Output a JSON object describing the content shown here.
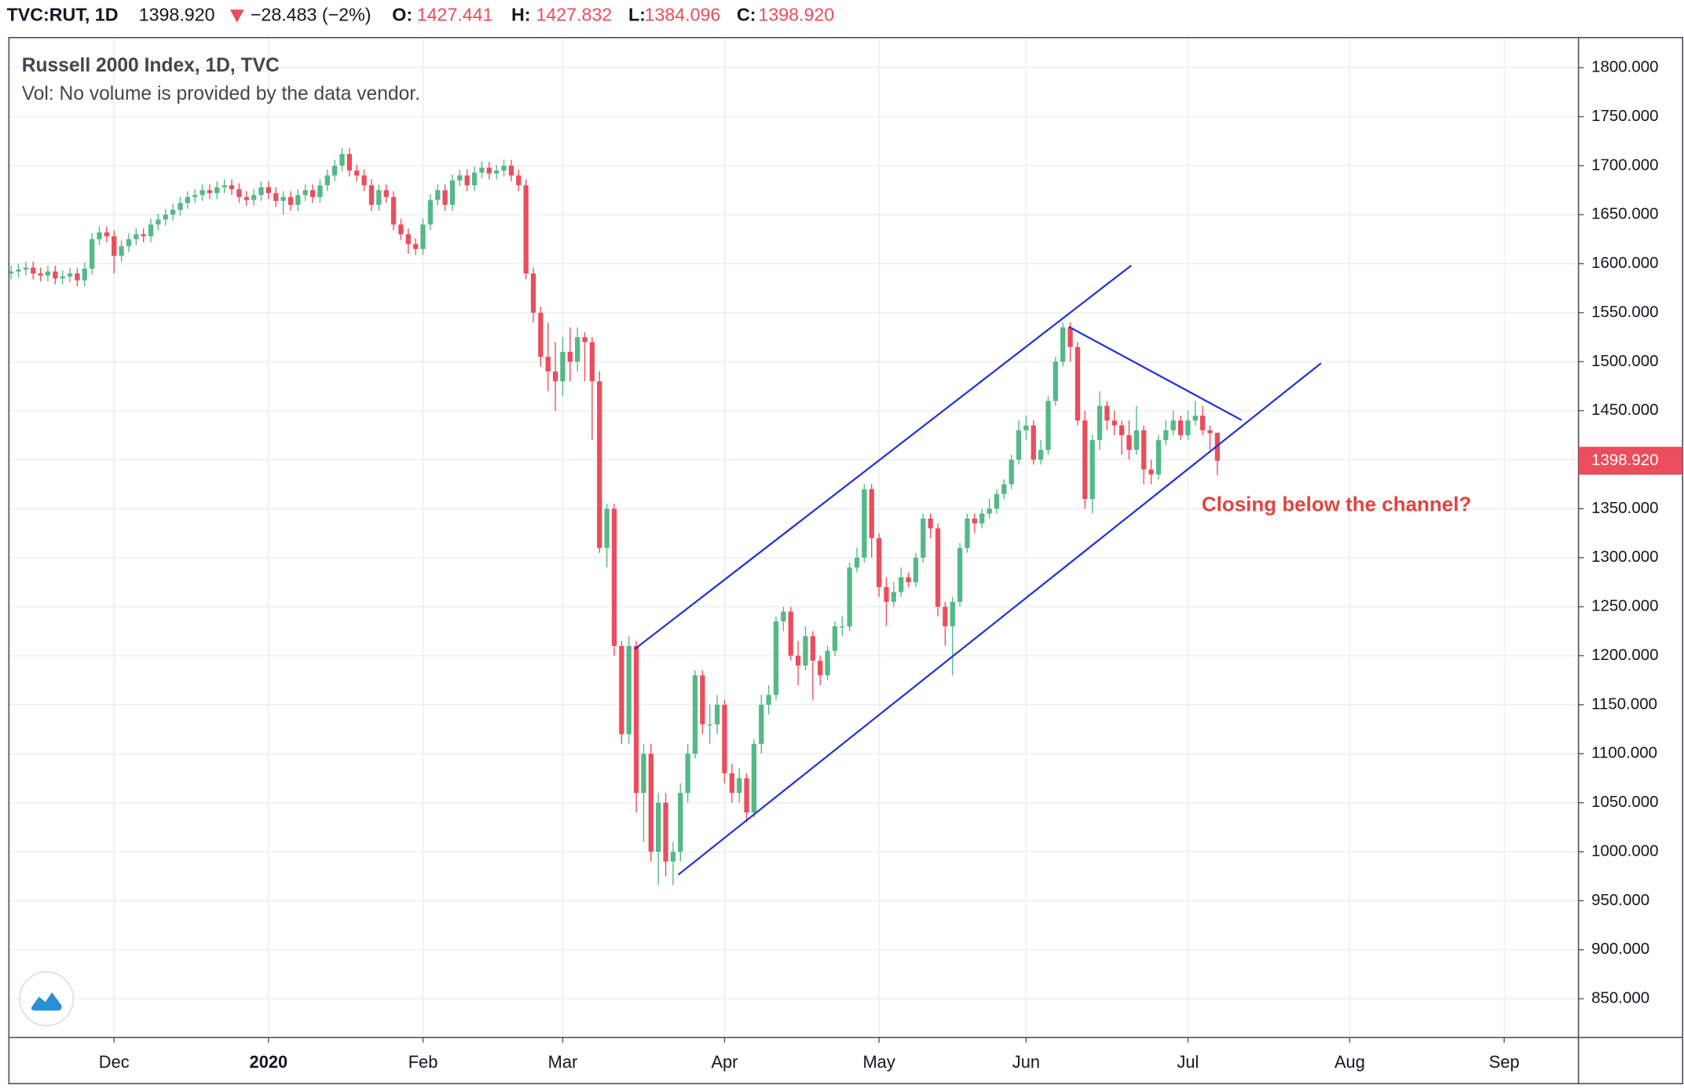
{
  "chart_data": {
    "type": "candlestick",
    "symbol": "TVC:RUT, 1D",
    "title": "Russell 2000 Index, 1D, TVC",
    "subtitle": "Vol: No volume is provided by the data vendor.",
    "change_label": "−28.483 (−2%)",
    "header_labels": {
      "open": "O:",
      "high": "H:",
      "low": "L:",
      "close": "C:"
    },
    "header_values": {
      "open": "1427.441",
      "high": "1427.832",
      "low": "1384.096",
      "close": "1398.920"
    },
    "annotation": "Closing below the channel?",
    "up_color": "#53b987",
    "down_color": "#eb4d5c",
    "drawing_color": "#1f2fd9",
    "annotation_color": "#e0453f",
    "grid": true,
    "xlim": [
      -0.3,
      213.1
    ],
    "ylim": [
      810.5,
      1830.7
    ],
    "xticks": [
      {
        "value": 14,
        "label": "Dec"
      },
      {
        "value": 35,
        "label": "2020"
      },
      {
        "value": 56,
        "label": "Feb"
      },
      {
        "value": 75,
        "label": "Mar"
      },
      {
        "value": 97,
        "label": "Apr"
      },
      {
        "value": 118,
        "label": "May"
      },
      {
        "value": 138,
        "label": "Jun"
      },
      {
        "value": 160,
        "label": "Jul"
      },
      {
        "value": 182,
        "label": "Aug"
      },
      {
        "value": 203,
        "label": "Sep"
      }
    ],
    "yticks": [
      {
        "value": 850,
        "label": "850.000"
      },
      {
        "value": 900,
        "label": "900.000"
      },
      {
        "value": 950,
        "label": "950.000"
      },
      {
        "value": 1000,
        "label": "1000.000"
      },
      {
        "value": 1050,
        "label": "1050.000"
      },
      {
        "value": 1100,
        "label": "1100.000"
      },
      {
        "value": 1150,
        "label": "1150.000"
      },
      {
        "value": 1200,
        "label": "1200.000"
      },
      {
        "value": 1250,
        "label": "1250.000"
      },
      {
        "value": 1300,
        "label": "1300.000"
      },
      {
        "value": 1350,
        "label": "1350.000"
      },
      {
        "value": 1400,
        "label": "1400.000"
      },
      {
        "value": 1450,
        "label": "1450.000"
      },
      {
        "value": 1500,
        "label": "1500.000"
      },
      {
        "value": 1550,
        "label": "1550.000"
      },
      {
        "value": 1600,
        "label": "1600.000"
      },
      {
        "value": 1650,
        "label": "1650.000"
      },
      {
        "value": 1700,
        "label": "1700.000"
      },
      {
        "value": 1750,
        "label": "1750.000"
      },
      {
        "value": 1800,
        "label": "1800.000"
      }
    ],
    "open": [
      1590,
      1592,
      1594,
      1596,
      1590,
      1588,
      1592,
      1585,
      1587,
      1590,
      1583,
      1595,
      1625,
      1632,
      1628,
      1608,
      1618,
      1625,
      1630,
      1628,
      1640,
      1645,
      1650,
      1655,
      1662,
      1668,
      1670,
      1675,
      1672,
      1678,
      1680,
      1676,
      1668,
      1665,
      1670,
      1678,
      1672,
      1664,
      1668,
      1660,
      1670,
      1675,
      1668,
      1680,
      1690,
      1700,
      1712,
      1695,
      1690,
      1680,
      1660,
      1675,
      1668,
      1640,
      1630,
      1620,
      1615,
      1640,
      1665,
      1675,
      1660,
      1685,
      1690,
      1680,
      1693,
      1698,
      1692,
      1695,
      1700,
      1690,
      1680,
      1590,
      1550,
      1505,
      1490,
      1480,
      1510,
      1500,
      1525,
      1520,
      1480,
      1310,
      1350,
      1210,
      1120,
      1210,
      1060,
      1100,
      1000,
      1050,
      990,
      1000,
      1060,
      1100,
      1180,
      1130,
      1130,
      1150,
      1080,
      1060,
      1075,
      1040,
      1110,
      1150,
      1160,
      1235,
      1245,
      1200,
      1190,
      1220,
      1195,
      1180,
      1205,
      1230,
      1230,
      1290,
      1300,
      1370,
      1320,
      1270,
      1255,
      1265,
      1280,
      1275,
      1300,
      1340,
      1330,
      1250,
      1230,
      1255,
      1310,
      1340,
      1335,
      1345,
      1350,
      1365,
      1375,
      1400,
      1430,
      1435,
      1400,
      1410,
      1460,
      1500,
      1535,
      1515,
      1440,
      1360,
      1420,
      1455,
      1440,
      1435,
      1425,
      1410,
      1430,
      1390,
      1385,
      1420,
      1430,
      1440,
      1425,
      1440,
      1445,
      1430,
      1427.441
    ],
    "high": [
      1598,
      1600,
      1602,
      1602,
      1596,
      1598,
      1598,
      1593,
      1596,
      1596,
      1601,
      1631,
      1638,
      1638,
      1634,
      1624,
      1631,
      1636,
      1636,
      1646,
      1651,
      1656,
      1661,
      1668,
      1674,
      1676,
      1681,
      1681,
      1684,
      1686,
      1686,
      1682,
      1674,
      1676,
      1684,
      1684,
      1678,
      1674,
      1674,
      1676,
      1681,
      1681,
      1686,
      1696,
      1706,
      1718,
      1718,
      1701,
      1696,
      1686,
      1681,
      1681,
      1674,
      1646,
      1636,
      1626,
      1646,
      1671,
      1681,
      1681,
      1691,
      1696,
      1696,
      1699,
      1704,
      1704,
      1701,
      1706,
      1706,
      1696,
      1686,
      1596,
      1556,
      1540,
      1520,
      1525,
      1535,
      1535,
      1530,
      1525,
      1490,
      1355,
      1355,
      1215,
      1220,
      1215,
      1110,
      1110,
      1060,
      1060,
      1010,
      1070,
      1110,
      1185,
      1185,
      1150,
      1160,
      1155,
      1090,
      1085,
      1080,
      1115,
      1160,
      1170,
      1240,
      1250,
      1250,
      1215,
      1230,
      1225,
      1200,
      1210,
      1235,
      1240,
      1295,
      1310,
      1375,
      1375,
      1325,
      1280,
      1275,
      1290,
      1285,
      1305,
      1345,
      1345,
      1335,
      1255,
      1260,
      1315,
      1345,
      1345,
      1350,
      1360,
      1370,
      1380,
      1405,
      1440,
      1445,
      1440,
      1420,
      1465,
      1505,
      1540,
      1540,
      1520,
      1450,
      1425,
      1470,
      1460,
      1450,
      1440,
      1440,
      1455,
      1435,
      1400,
      1425,
      1440,
      1450,
      1445,
      1450,
      1460,
      1455,
      1435,
      1427.832
    ],
    "low": [
      1584,
      1586,
      1588,
      1584,
      1582,
      1582,
      1579,
      1579,
      1581,
      1577,
      1577,
      1589,
      1619,
      1622,
      1590,
      1602,
      1612,
      1619,
      1622,
      1622,
      1634,
      1639,
      1644,
      1649,
      1656,
      1662,
      1664,
      1666,
      1666,
      1672,
      1670,
      1662,
      1659,
      1659,
      1664,
      1666,
      1658,
      1650,
      1654,
      1654,
      1664,
      1662,
      1662,
      1674,
      1684,
      1694,
      1689,
      1684,
      1674,
      1654,
      1654,
      1662,
      1634,
      1624,
      1610,
      1609,
      1609,
      1634,
      1659,
      1654,
      1654,
      1679,
      1674,
      1674,
      1687,
      1686,
      1686,
      1689,
      1684,
      1674,
      1584,
      1540,
      1495,
      1470,
      1450,
      1465,
      1480,
      1490,
      1480,
      1420,
      1305,
      1290,
      1200,
      1110,
      1110,
      1040,
      1010,
      990,
      966,
      975,
      966,
      990,
      1050,
      1095,
      1120,
      1110,
      1120,
      1070,
      1050,
      1050,
      1030,
      1035,
      1100,
      1140,
      1155,
      1225,
      1195,
      1170,
      1185,
      1155,
      1170,
      1175,
      1200,
      1220,
      1225,
      1285,
      1295,
      1300,
      1260,
      1230,
      1250,
      1260,
      1270,
      1270,
      1295,
      1320,
      1240,
      1210,
      1180,
      1250,
      1305,
      1325,
      1330,
      1340,
      1345,
      1360,
      1370,
      1395,
      1420,
      1395,
      1395,
      1405,
      1455,
      1495,
      1500,
      1435,
      1350,
      1345,
      1410,
      1430,
      1425,
      1405,
      1400,
      1405,
      1375,
      1375,
      1380,
      1415,
      1425,
      1420,
      1420,
      1435,
      1425,
      1410,
      1384.096
    ],
    "close": [
      1592,
      1594,
      1596,
      1590,
      1588,
      1592,
      1585,
      1587,
      1590,
      1583,
      1595,
      1625,
      1632,
      1628,
      1608,
      1618,
      1625,
      1630,
      1628,
      1640,
      1645,
      1650,
      1655,
      1662,
      1668,
      1670,
      1675,
      1672,
      1678,
      1680,
      1676,
      1668,
      1665,
      1670,
      1678,
      1672,
      1664,
      1668,
      1660,
      1670,
      1675,
      1668,
      1680,
      1690,
      1700,
      1712,
      1695,
      1690,
      1680,
      1660,
      1675,
      1668,
      1640,
      1630,
      1620,
      1615,
      1640,
      1665,
      1675,
      1660,
      1685,
      1690,
      1680,
      1693,
      1698,
      1692,
      1695,
      1700,
      1690,
      1680,
      1590,
      1550,
      1505,
      1490,
      1480,
      1510,
      1500,
      1525,
      1520,
      1480,
      1310,
      1350,
      1210,
      1120,
      1210,
      1060,
      1100,
      1000,
      1050,
      990,
      1000,
      1060,
      1100,
      1180,
      1130,
      1130,
      1150,
      1080,
      1060,
      1075,
      1040,
      1110,
      1150,
      1160,
      1235,
      1245,
      1200,
      1190,
      1220,
      1195,
      1180,
      1205,
      1230,
      1230,
      1290,
      1300,
      1370,
      1320,
      1270,
      1255,
      1265,
      1280,
      1275,
      1300,
      1340,
      1330,
      1250,
      1230,
      1255,
      1310,
      1340,
      1335,
      1345,
      1350,
      1365,
      1375,
      1400,
      1430,
      1435,
      1400,
      1410,
      1460,
      1500,
      1535,
      1515,
      1440,
      1360,
      1420,
      1455,
      1440,
      1435,
      1425,
      1410,
      1430,
      1390,
      1385,
      1420,
      1430,
      1440,
      1425,
      1440,
      1445,
      1430,
      1427,
      1398.92
    ],
    "drawings": [
      {
        "x": [
          84.8,
          152.3
        ],
        "y": [
          1206.8,
          1598.2
        ]
      },
      {
        "x": [
          90.7,
          178.1
        ],
        "y": [
          976.5,
          1498.5
        ]
      },
      {
        "x": [
          143.8,
          167.3
        ],
        "y": [
          1535.7,
          1440.4
        ]
      }
    ]
  }
}
